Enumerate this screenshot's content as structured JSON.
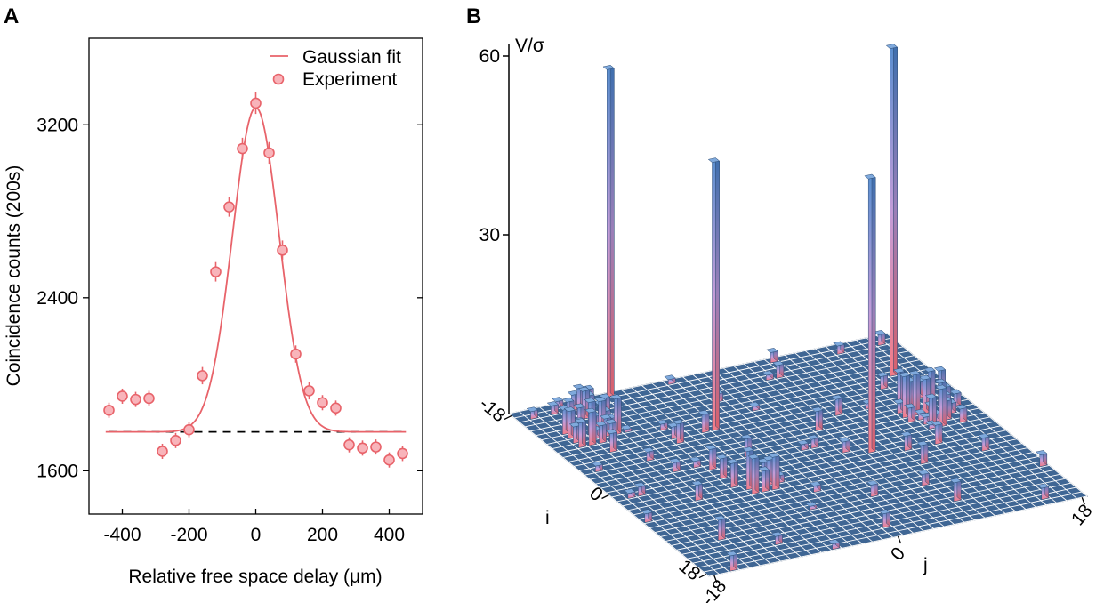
{
  "chart_data": [
    {
      "panel": "A",
      "type": "scatter",
      "xlabel": "Relative free space delay (μm)",
      "ylabel": "Coincidence counts (200s)",
      "xlim": [
        -500,
        500
      ],
      "ylim": [
        1400,
        3600
      ],
      "xticks": [
        -400,
        -200,
        0,
        200,
        400
      ],
      "yticks": [
        1600,
        2400,
        3200
      ],
      "legend": {
        "position": "top-right",
        "entries": [
          "Gaussian fit",
          "Experiment"
        ]
      },
      "series": [
        {
          "name": "Experiment",
          "x": [
            -440,
            -400,
            -360,
            -320,
            -280,
            -240,
            -200,
            -160,
            -120,
            -80,
            -40,
            0,
            40,
            80,
            120,
            160,
            200,
            240,
            280,
            320,
            360,
            400,
            440
          ],
          "values": [
            1880,
            1945,
            1930,
            1935,
            1690,
            1740,
            1790,
            2040,
            2520,
            2820,
            3090,
            3300,
            3070,
            2620,
            2140,
            1970,
            1915,
            1890,
            1720,
            1705,
            1710,
            1650,
            1680
          ],
          "errors": [
            35,
            35,
            35,
            35,
            35,
            35,
            35,
            40,
            45,
            45,
            50,
            50,
            50,
            45,
            40,
            40,
            35,
            35,
            35,
            35,
            35,
            35,
            35
          ]
        },
        {
          "name": "Gaussian fit",
          "type": "line",
          "baseline": 1780,
          "amplitude": 1500,
          "center": 0,
          "sigma": 70
        }
      ],
      "reference_line": {
        "y": 1780,
        "style": "dashed"
      }
    },
    {
      "panel": "B",
      "type": "bar3d",
      "zlabel": "V/σ",
      "zticks": [
        30,
        60
      ],
      "i_label": "i",
      "j_label": "j",
      "i_ticks": [
        "-18",
        "0",
        "18"
      ],
      "j_ticks": [
        "-18",
        "0",
        "18"
      ],
      "grid_range": [
        -18,
        18
      ],
      "peaks": [
        {
          "i": -8,
          "j": -4,
          "value": 45
        },
        {
          "i": -18,
          "j": -9,
          "value": 55
        },
        {
          "i": 2,
          "j": 6,
          "value": 46
        },
        {
          "i": -11,
          "j": 15,
          "value": 55
        }
      ],
      "clusters": [
        {
          "i0": -14,
          "i1": -10,
          "j0": -16,
          "j1": -12,
          "max": 6
        },
        {
          "i0": 1,
          "i1": 5,
          "j0": -8,
          "j1": -4,
          "max": 7
        },
        {
          "i0": -4,
          "i1": 0,
          "j0": 12,
          "j1": 16,
          "max": 7
        },
        {
          "i0": -18,
          "i1": -15,
          "j0": -14,
          "j1": -11,
          "max": 5
        }
      ]
    }
  ],
  "panel_labels": {
    "a": "A",
    "b": "B"
  }
}
